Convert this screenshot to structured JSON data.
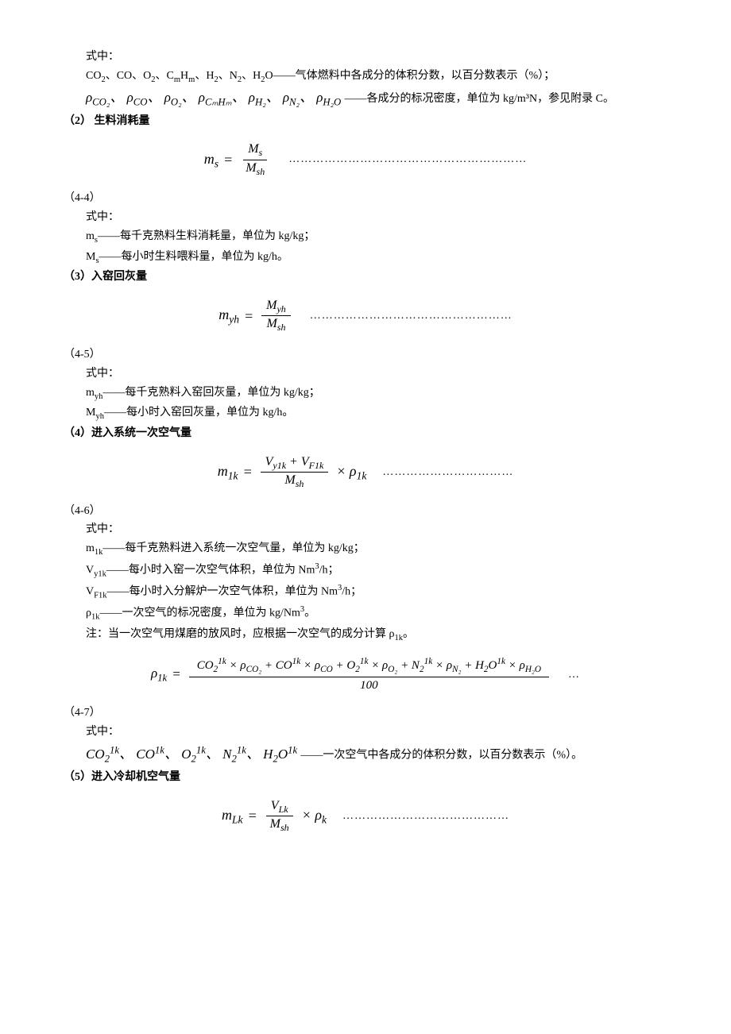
{
  "p1": {
    "l1": "式中：",
    "l2": "CO₂、CO、O₂、CₘHₘ、H₂、N₂、H₂O——气体燃料中各成分的体积分数，以百分数表示（%）；",
    "l3_terms": "ρ_CO₂、 ρ_CO、 ρ_O₂、 ρ_CₘHₘ、 ρ_H₂、 ρ_N₂、 ρ_H₂O",
    "l3_rest": "——各成分的标况密度，单位为 kg/m³N，参见附录 C。"
  },
  "s2": {
    "heading": "（2） 生料消耗量",
    "num": "（4-4）",
    "lhs": "mₛ",
    "frac_num": "Mₛ",
    "frac_den": "M_sh",
    "dots": "……………………………………………………",
    "t1": "式中：",
    "t2": "mₛ——每千克熟料生料消耗量，单位为 kg/kg；",
    "t3": "Mₛ——每小时生料喂料量，单位为 kg/h。"
  },
  "s3": {
    "heading": "（3）入窑回灰量",
    "num": "（4-5）",
    "lhs": "m_yh",
    "frac_num": "M_yh",
    "frac_den": "M_sh",
    "dots": "……………………………………………",
    "t1": "式中：",
    "t2": "m_yh——每千克熟料入窑回灰量，单位为 kg/kg；",
    "t3": "M_yh——每小时入窑回灰量，单位为 kg/h。"
  },
  "s4": {
    "heading": "（4）进入系统一次空气量",
    "num": "（4-6）",
    "lhs": "m_1k",
    "frac_num": "V_y1k + V_F1k",
    "frac_den": "M_sh",
    "tail": "× ρ_1k",
    "dots": "……………………………",
    "t1": "式中：",
    "t2": "m_1k——每千克熟料进入系统一次空气量，单位为 kg/kg；",
    "t3": "V_y1k——每小时入窑一次空气体积，单位为 Nm³/h；",
    "t4": "V_F1k——每小时入分解炉一次空气体积，单位为 Nm³/h；",
    "t5": "ρ_1k——一次空气的标况密度，单位为 kg/Nm³。",
    "t6": "注：当一次空气用煤磨的放风时，应根据一次空气的成分计算 ρ_1k。"
  },
  "s4b": {
    "num": "（4-7）",
    "lhs": "ρ_1k",
    "frac_num": "CO₂^1k × ρ_CO₂ + CO^1k × ρ_CO + O₂^1k × ρ_O₂ + N₂^1k × ρ_N₂ + H₂O^1k × ρ_H₂O",
    "frac_den": "100",
    "dots": "…",
    "t1": "式中：",
    "t2_terms": "CO₂^1k、 CO^1k、 O₂^1k、 N₂^1k、 H₂O^1k",
    "t2_rest": "——一次空气中各成分的体积分数，以百分数表示（%）。"
  },
  "s5": {
    "heading": "（5）进入冷却机空气量",
    "lhs": "m_Lk",
    "frac_num": "V_Lk",
    "frac_den": "M_sh",
    "tail": "× ρ_k",
    "dots": "……………………………………"
  }
}
